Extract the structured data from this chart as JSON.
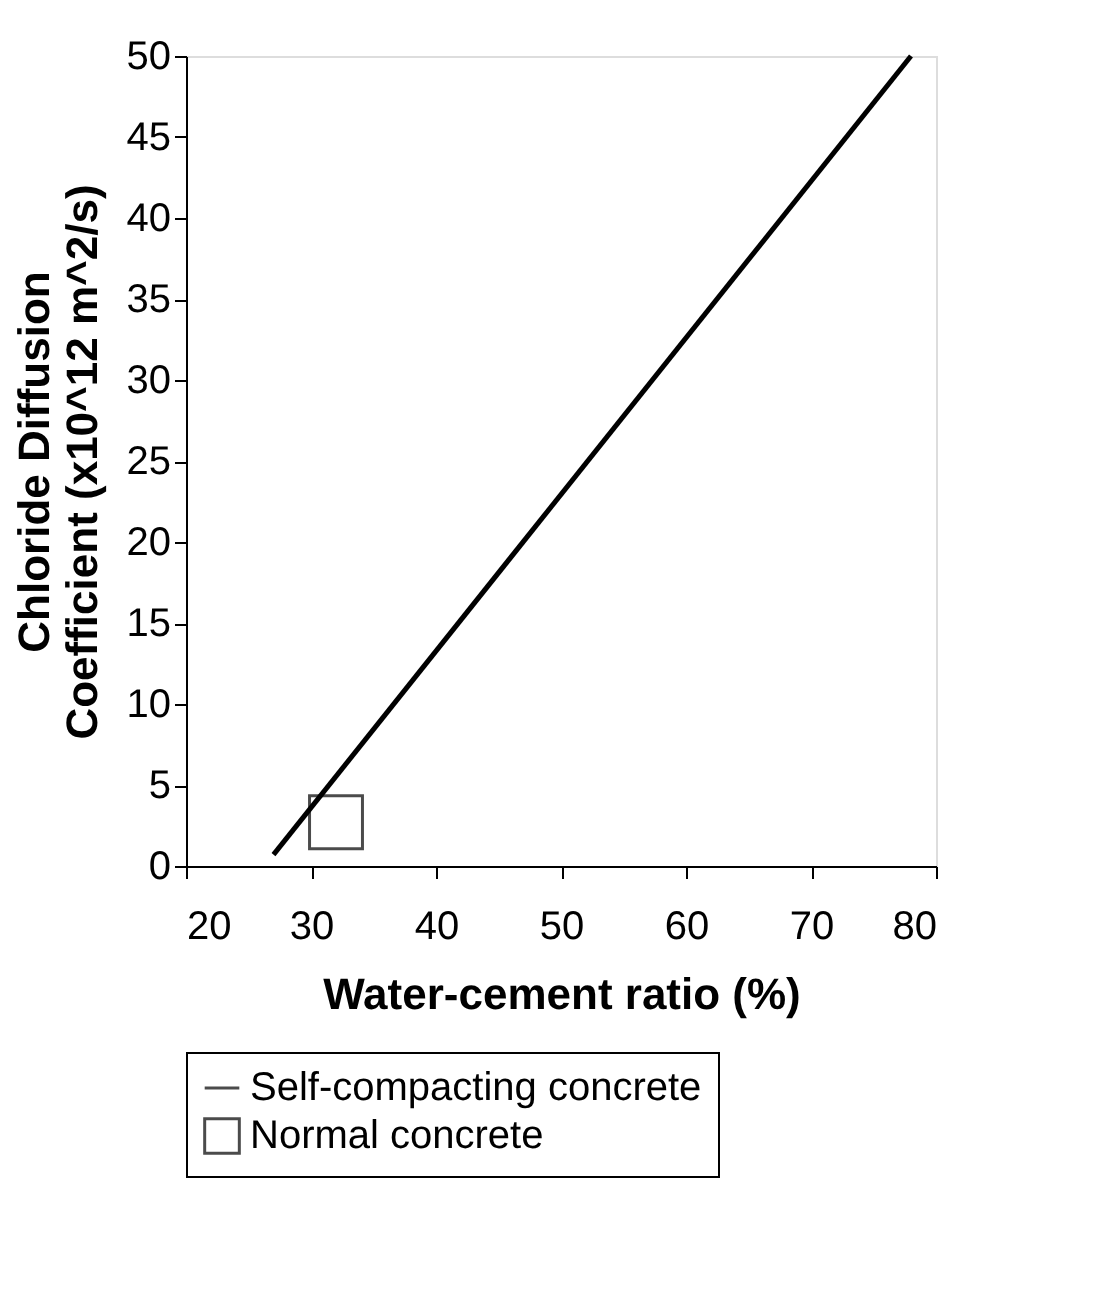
{
  "chart_data": {
    "type": "line",
    "xlabel": "Water-cement ratio (%)",
    "ylabel": "Chloride Diffusion\nCoefficient (x10^12 m^2/s)",
    "xlim": [
      20,
      80
    ],
    "xticks": [
      20,
      30,
      40,
      50,
      60,
      70,
      80
    ],
    "ylim": [
      0,
      50
    ],
    "yticks": [
      0,
      5,
      10,
      15,
      20,
      25,
      30,
      35,
      40,
      45,
      50
    ],
    "grid": false,
    "legend": "bottom",
    "series": [
      {
        "name": "Self-compacting concrete",
        "color": "#000000",
        "x": [
          27,
          78
        ],
        "values": [
          0.7,
          50
        ],
        "marker": "none",
        "line_style": "solid"
      },
      {
        "name": "Normal concrete",
        "type": "scatter",
        "color": "#000000",
        "x": [
          32
        ],
        "values": [
          2.7
        ],
        "marker": "square"
      }
    ]
  }
}
